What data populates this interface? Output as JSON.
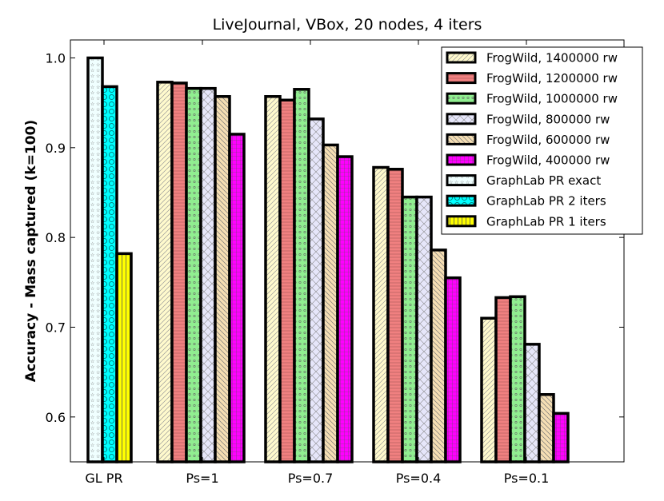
{
  "chart_data": {
    "type": "bar",
    "title": "LiveJournal, VBox, 20 nodes, 4 iters",
    "xlabel": "",
    "ylabel": "Accuracy - Mass captured (k=100)",
    "ylim": [
      0.55,
      1.02
    ],
    "yticks": [
      "0.6",
      "0.7",
      "0.8",
      "0.9",
      "1.0"
    ],
    "grid": false,
    "legend_position": "top-right",
    "categories": [
      "GL PR",
      "Ps=1",
      "Ps=0.7",
      "Ps=0.4",
      "Ps=0.1"
    ],
    "series": [
      {
        "name": "FrogWild, 1400000 rw",
        "color": "#fffacd",
        "pattern": "diag-right",
        "values": [
          null,
          0.973,
          0.957,
          0.878,
          0.71
        ]
      },
      {
        "name": "FrogWild, 1200000 rw",
        "color": "#f08080",
        "pattern": "horizontal",
        "values": [
          null,
          0.972,
          0.953,
          0.876,
          0.733
        ]
      },
      {
        "name": "FrogWild, 1000000 rw",
        "color": "#90ee90",
        "pattern": "dots",
        "values": [
          null,
          0.966,
          0.965,
          0.845,
          0.734
        ]
      },
      {
        "name": "FrogWild, 800000 rw",
        "color": "#e6e6fa",
        "pattern": "cross",
        "values": [
          null,
          0.966,
          0.932,
          0.845,
          0.681
        ]
      },
      {
        "name": "FrogWild, 600000 rw",
        "color": "#f5deb3",
        "pattern": "diag-left",
        "values": [
          null,
          0.957,
          0.903,
          0.786,
          0.625
        ]
      },
      {
        "name": "FrogWild, 400000 rw",
        "color": "#ff00ff",
        "pattern": "grid",
        "values": [
          null,
          0.915,
          0.89,
          0.755,
          0.604
        ]
      },
      {
        "name": "GraphLab PR exact",
        "color": "#f0ffff",
        "pattern": "stars",
        "values": [
          1.0,
          null,
          null,
          null,
          null
        ]
      },
      {
        "name": "GraphLab PR 2 iters",
        "color": "#00ffff",
        "pattern": "circles",
        "values": [
          0.968,
          null,
          null,
          null,
          null
        ]
      },
      {
        "name": "GraphLab PR 1 iters",
        "color": "#ffff00",
        "pattern": "vertical",
        "values": [
          0.782,
          null,
          null,
          null,
          null
        ]
      }
    ]
  }
}
